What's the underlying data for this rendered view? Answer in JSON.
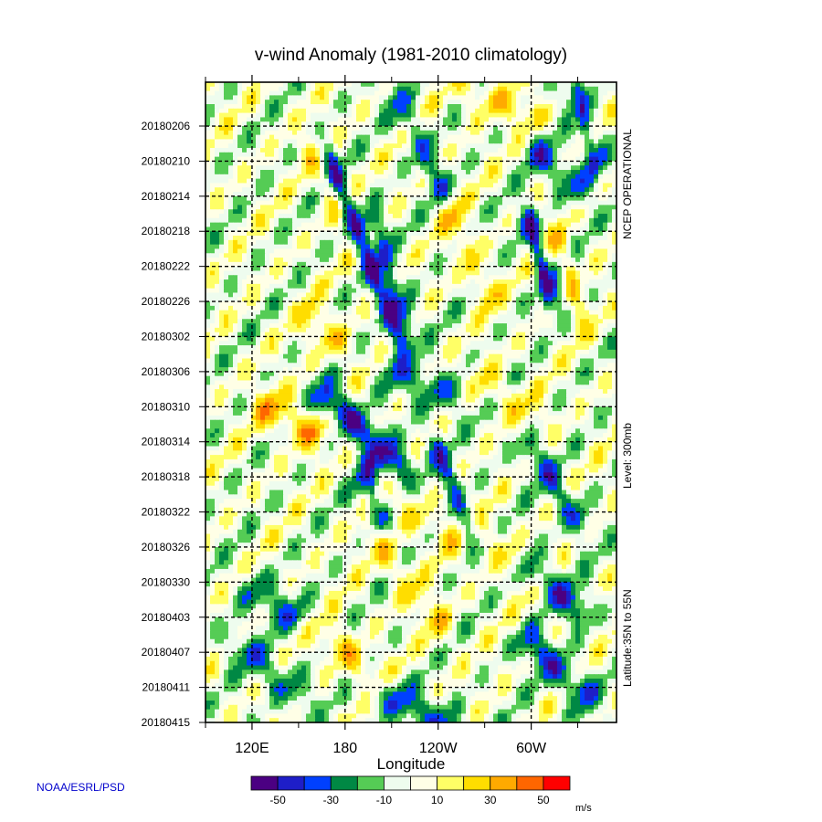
{
  "chart_data": {
    "type": "heatmap",
    "title": "v-wind Anomaly  (1981-2010 climatology)",
    "xlabel": "Longitude",
    "ylabel": "",
    "x_ticks": [
      "120E",
      "180",
      "120W",
      "60W"
    ],
    "x_tick_lon_east": [
      120,
      180,
      240,
      300
    ],
    "xlim_lon_east": [
      90,
      355
    ],
    "y_ticks": [
      "20180206",
      "20180210",
      "20180214",
      "20180218",
      "20180222",
      "20180226",
      "20180302",
      "20180306",
      "20180310",
      "20180314",
      "20180318",
      "20180322",
      "20180326",
      "20180330",
      "20180403",
      "20180407",
      "20180411",
      "20180415"
    ],
    "ylim_dates": [
      "20180201",
      "20180415"
    ],
    "grid": true,
    "side_labels": [
      "NCEP OPERATIONAL",
      "Level: 300mb",
      "Latitude:35N to 55N"
    ],
    "colorbar": {
      "colors": [
        "#4b0082",
        "#1e1ec8",
        "#0040ff",
        "#008844",
        "#55cc55",
        "#eefcee",
        "#ffffe6",
        "#ffff66",
        "#ffdd00",
        "#ffaa00",
        "#ff6600",
        "#ff0000"
      ],
      "labels": [
        "-50",
        "-30",
        "-10",
        "10",
        "30",
        "50"
      ],
      "unit": "m/s"
    },
    "features": [
      {
        "lon1": 170,
        "d1": 9,
        "lon2": 215,
        "d2": 29,
        "v": -45
      },
      {
        "lon1": 200,
        "d1": 16,
        "lon2": 215,
        "d2": 26,
        "v": -35
      },
      {
        "lon1": 170,
        "d1": 36,
        "lon2": 215,
        "d2": 44,
        "v": -45
      },
      {
        "lon1": 195,
        "d1": 45,
        "lon2": 200,
        "d2": 50,
        "v": -35
      },
      {
        "lon1": 300,
        "d1": 16,
        "lon2": 310,
        "d2": 24,
        "v": -45
      },
      {
        "lon1": 250,
        "d1": 15,
        "lon2": 270,
        "d2": 24,
        "v": 25
      },
      {
        "lon1": 130,
        "d1": 37,
        "lon2": 160,
        "d2": 40,
        "v": 28
      },
      {
        "lon1": 160,
        "d1": 8,
        "lon2": 175,
        "d2": 14,
        "v": 25
      },
      {
        "lon1": 160,
        "d1": 27,
        "lon2": 175,
        "d2": 30,
        "v": 22
      },
      {
        "lon1": 215,
        "d1": 2,
        "lon2": 240,
        "d2": 12,
        "v": -30
      },
      {
        "lon1": 330,
        "d1": 1,
        "lon2": 340,
        "d2": 9,
        "v": -40
      },
      {
        "lon1": 305,
        "d1": 8,
        "lon2": 330,
        "d2": 12,
        "v": -30
      },
      {
        "lon1": 240,
        "d1": 42,
        "lon2": 260,
        "d2": 50,
        "v": -35
      },
      {
        "lon1": 300,
        "d1": 42,
        "lon2": 330,
        "d2": 50,
        "v": -30
      },
      {
        "lon1": 300,
        "d1": 56,
        "lon2": 330,
        "d2": 60,
        "v": -35
      },
      {
        "lon1": 300,
        "d1": 64,
        "lon2": 335,
        "d2": 70,
        "v": -35
      },
      {
        "lon1": 200,
        "d1": 69,
        "lon2": 250,
        "d2": 74,
        "v": -30
      },
      {
        "lon1": 110,
        "d1": 64,
        "lon2": 150,
        "d2": 70,
        "v": -25
      },
      {
        "lon1": 120,
        "d1": 58,
        "lon2": 160,
        "d2": 62,
        "v": -25
      },
      {
        "lon1": 160,
        "d1": 62,
        "lon2": 200,
        "d2": 68,
        "v": 25
      },
      {
        "lon1": 260,
        "d1": 48,
        "lon2": 300,
        "d2": 58,
        "v": 18
      },
      {
        "lon1": 200,
        "d1": 52,
        "lon2": 240,
        "d2": 62,
        "v": 20
      },
      {
        "lon1": 215,
        "d1": 48,
        "lon2": 245,
        "d2": 52,
        "v": 15
      },
      {
        "lon1": 320,
        "d1": 18,
        "lon2": 330,
        "d2": 26,
        "v": 20
      },
      {
        "lon1": 260,
        "d1": 1,
        "lon2": 300,
        "d2": 4,
        "v": 18
      },
      {
        "lon1": 210,
        "d1": 33,
        "lon2": 250,
        "d2": 36,
        "v": -25
      },
      {
        "lon1": 270,
        "d1": 34,
        "lon2": 300,
        "d2": 38,
        "v": 15
      }
    ]
  },
  "credit": "NOAA/ESRL/PSD"
}
